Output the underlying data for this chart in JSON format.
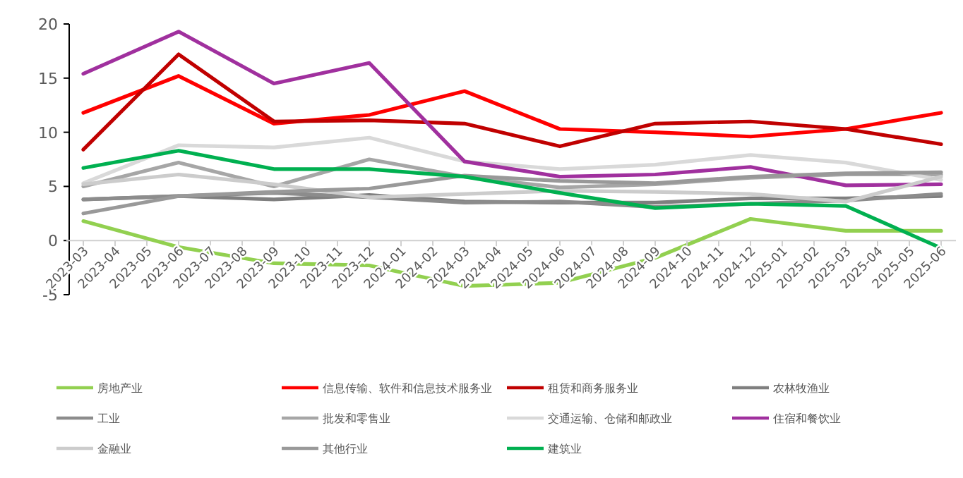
{
  "chart_data": {
    "type": "line",
    "x": [
      "2023-03",
      "2023-06",
      "2023-09",
      "2023-12",
      "2024-03",
      "2024-06",
      "2024-09",
      "2024-12",
      "2025-03",
      "2025-06"
    ],
    "xlim": [
      "2023-02-15",
      "2025-06-15"
    ],
    "xticks": [
      "2023-03",
      "2023-04",
      "2023-05",
      "2023-06",
      "2023-07",
      "2023-08",
      "2023-09",
      "2023-10",
      "2023-11",
      "2023-12",
      "2024-01",
      "2024-02",
      "2024-03",
      "2024-04",
      "2024-05",
      "2024-06",
      "2024-07",
      "2024-08",
      "2024-09",
      "2024-10",
      "2024-11",
      "2024-12",
      "2025-01",
      "2025-02",
      "2025-03",
      "2025-04",
      "2025-05",
      "2025-06"
    ],
    "ylim": [
      -5,
      20
    ],
    "yticks": [
      -5,
      0,
      5,
      10,
      15,
      20
    ],
    "grid": false,
    "legend": "bottom",
    "marker": "none",
    "line_style": "solid",
    "series": [
      {
        "name": "房地产业",
        "color": "#92d050",
        "values": [
          1.8,
          -0.6,
          -2.1,
          -2.3,
          -4.2,
          -3.9,
          -1.6,
          2.0,
          0.9,
          0.9
        ]
      },
      {
        "name": "信息传输、软件和信息技术服务业",
        "color": "#ff0000",
        "values": [
          11.8,
          15.2,
          10.8,
          11.6,
          13.8,
          10.3,
          10.0,
          9.6,
          10.3,
          11.8
        ]
      },
      {
        "name": "租赁和商务服务业",
        "color": "#c00000",
        "values": [
          8.4,
          17.2,
          11.0,
          11.1,
          10.8,
          8.7,
          10.8,
          11.0,
          10.3,
          8.9
        ]
      },
      {
        "name": "农林牧渔业",
        "color": "#7f7f7f",
        "values": [
          3.8,
          4.1,
          3.8,
          4.2,
          3.6,
          3.5,
          3.5,
          3.9,
          3.9,
          4.1
        ]
      },
      {
        "name": "工业",
        "color": "#8c8c8c",
        "values": [
          3.8,
          4.1,
          4.4,
          4.0,
          3.5,
          3.6,
          3.1,
          3.4,
          3.7,
          4.3
        ]
      },
      {
        "name": "批发和零售业",
        "color": "#a6a6a6",
        "values": [
          5.0,
          7.2,
          5.0,
          7.5,
          5.9,
          4.9,
          5.2,
          5.8,
          6.1,
          6.1
        ]
      },
      {
        "name": "交通运输、仓储和邮政业",
        "color": "#d9d9d9",
        "values": [
          5.3,
          8.8,
          8.6,
          9.5,
          7.3,
          6.6,
          7.0,
          7.9,
          7.2,
          5.6
        ]
      },
      {
        "name": "住宿和餐饮业",
        "color": "#a0309e",
        "values": [
          15.4,
          19.3,
          14.5,
          16.4,
          7.3,
          5.9,
          6.1,
          6.8,
          5.1,
          5.2
        ]
      },
      {
        "name": "金融业",
        "color": "#cccccc",
        "values": [
          5.2,
          6.1,
          5.2,
          4.0,
          4.3,
          4.6,
          4.5,
          4.3,
          3.6,
          5.9
        ]
      },
      {
        "name": "其他行业",
        "color": "#999999",
        "values": [
          2.5,
          4.1,
          4.5,
          4.8,
          6.0,
          5.5,
          5.3,
          5.9,
          6.2,
          6.3
        ]
      },
      {
        "name": "建筑业",
        "color": "#00b050",
        "values": [
          6.7,
          8.3,
          6.6,
          6.6,
          5.9,
          4.4,
          3.0,
          3.4,
          3.2,
          -0.7
        ]
      }
    ]
  }
}
